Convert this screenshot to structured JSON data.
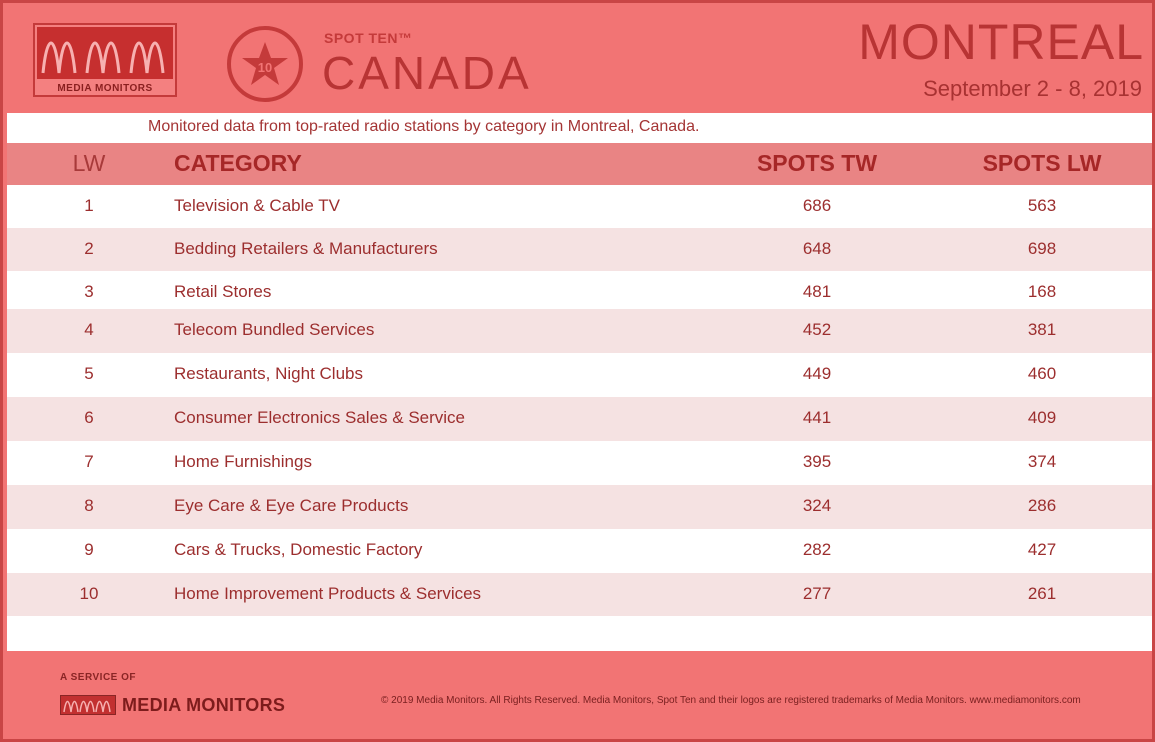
{
  "header": {
    "brand_logo_text": "MEDIA MONITORS",
    "badge_number": "10",
    "product_label": "SPOT TEN™",
    "country": "CANADA",
    "city": "MONTREAL",
    "date_range": "September 2 - 8, 2019"
  },
  "subtitle": "Monitored data from top-rated radio stations by category in Montreal, Canada.",
  "table": {
    "columns": [
      "LW",
      "CATEGORY",
      "SPOTS TW",
      "SPOTS LW"
    ],
    "rows": [
      {
        "lw": "1",
        "category": "Television & Cable TV",
        "spots_tw": "686",
        "spots_lw": "563"
      },
      {
        "lw": "2",
        "category": "Bedding Retailers & Manufacturers",
        "spots_tw": "648",
        "spots_lw": "698"
      },
      {
        "lw": "3",
        "category": "Retail Stores",
        "spots_tw": "481",
        "spots_lw": "168"
      },
      {
        "lw": "4",
        "category": "Telecom Bundled Services",
        "spots_tw": "452",
        "spots_lw": "381"
      },
      {
        "lw": "5",
        "category": "Restaurants, Night Clubs",
        "spots_tw": "449",
        "spots_lw": "460"
      },
      {
        "lw": "6",
        "category": "Consumer Electronics Sales & Service",
        "spots_tw": "441",
        "spots_lw": "409"
      },
      {
        "lw": "7",
        "category": "Home Furnishings",
        "spots_tw": "395",
        "spots_lw": "374"
      },
      {
        "lw": "8",
        "category": "Eye Care & Eye Care Products",
        "spots_tw": "324",
        "spots_lw": "286"
      },
      {
        "lw": "9",
        "category": "Cars & Trucks, Domestic Factory",
        "spots_tw": "282",
        "spots_lw": "427"
      },
      {
        "lw": "10",
        "category": "Home Improvement Products & Services",
        "spots_tw": "277",
        "spots_lw": "261"
      }
    ]
  },
  "footer": {
    "service_of": "A SERVICE OF",
    "brand_name": "MEDIA MONITORS",
    "copyright": "© 2019 Media Monitors. All Rights Reserved. Media Monitors, Spot Ten and their logos are registered trademarks of Media Monitors. www.mediamonitors.com"
  },
  "colors": {
    "frame": "#f27474",
    "accent": "#b83434",
    "header_row": "#e98484",
    "alt_row": "#f5e2e2"
  }
}
